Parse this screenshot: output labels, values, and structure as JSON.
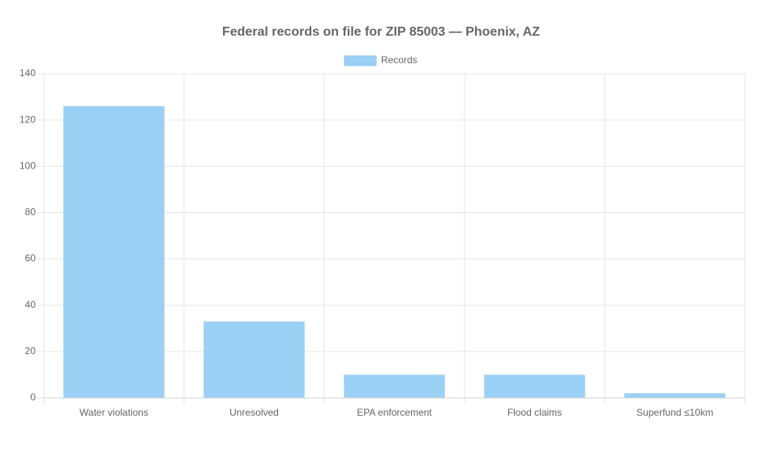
{
  "chart_data": {
    "type": "bar",
    "title": "Federal records on file for ZIP 85003 — Phoenix, AZ",
    "categories": [
      "Water violations",
      "Unresolved",
      "EPA enforcement",
      "Flood claims",
      "Superfund ≤10km"
    ],
    "series": [
      {
        "name": "Records",
        "color": "#9bd0f5",
        "values": [
          126,
          33,
          10,
          10,
          2
        ]
      }
    ],
    "ylim": [
      0,
      140
    ],
    "yticks": [
      0,
      20,
      40,
      60,
      80,
      100,
      120,
      140
    ],
    "grid": true,
    "legend": "top"
  }
}
